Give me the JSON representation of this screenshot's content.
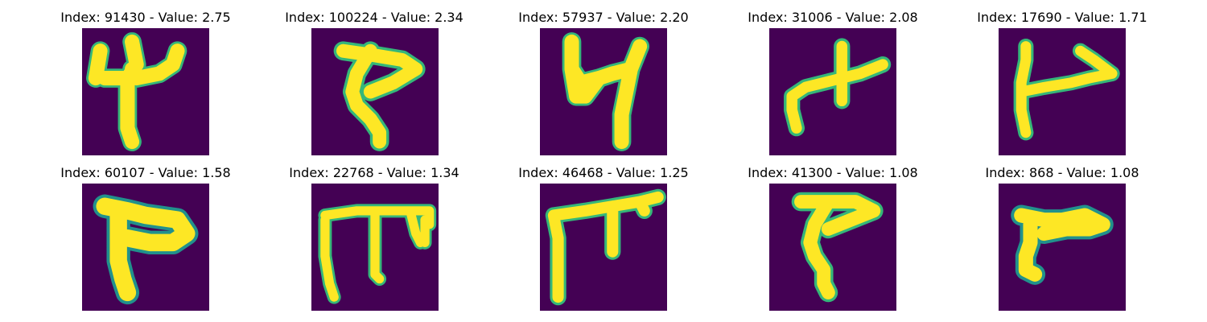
{
  "colors": {
    "background": "#440154",
    "stroke": "#fde725",
    "edge": "#35b779",
    "edge_dark": "#21918c"
  },
  "panels": [
    {
      "title": "Index: 91430 - Value: 2.75",
      "glyph": "glyph-91430"
    },
    {
      "title": "Index: 100224 - Value: 2.34",
      "glyph": "glyph-100224"
    },
    {
      "title": "Index: 57937 - Value: 2.20",
      "glyph": "glyph-57937"
    },
    {
      "title": "Index: 31006 - Value: 2.08",
      "glyph": "glyph-31006"
    },
    {
      "title": "Index: 17690 - Value: 1.71",
      "glyph": "glyph-17690"
    },
    {
      "title": "Index: 60107 - Value: 1.58",
      "glyph": "glyph-60107"
    },
    {
      "title": "Index: 22768 - Value: 1.34",
      "glyph": "glyph-22768"
    },
    {
      "title": "Index: 46468 - Value: 1.25",
      "glyph": "glyph-46468"
    },
    {
      "title": "Index: 41300 - Value: 1.08",
      "glyph": "glyph-41300"
    },
    {
      "title": "Index: 868 - Value: 1.08",
      "glyph": "glyph-868"
    }
  ]
}
